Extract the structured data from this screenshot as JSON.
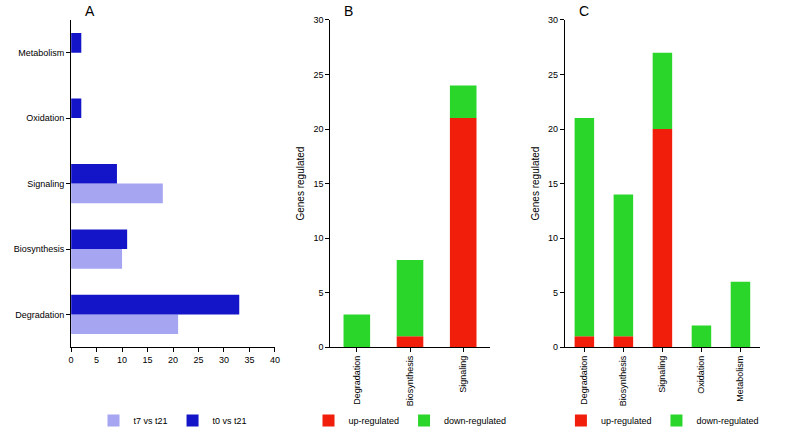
{
  "chart_data": [
    {
      "type": "bar",
      "title": "A",
      "orientation": "horizontal",
      "categories": [
        "Degradation",
        "Biosynthesis",
        "Signaling",
        "Oxidation",
        "Metabolism"
      ],
      "series": [
        {
          "name": "t7 vs t21",
          "color": "#a5a5f2",
          "values": [
            21,
            10,
            18,
            0,
            0
          ]
        },
        {
          "name": "t0 vs t21",
          "color": "#1414c8",
          "values": [
            33,
            11,
            9,
            2,
            2
          ]
        }
      ],
      "xlim": [
        0,
        40
      ],
      "xticks": [
        0,
        5,
        10,
        15,
        20,
        25,
        30,
        35,
        40
      ],
      "legend": "bottom"
    },
    {
      "type": "bar",
      "title": "B",
      "stacked": true,
      "categories": [
        "Degradation",
        "Biosynthesis",
        "Signaling"
      ],
      "y_label": "Genes regulated",
      "series": [
        {
          "name": "up-regulated",
          "color": "#f01e0a",
          "values": [
            0,
            1,
            21
          ]
        },
        {
          "name": "down-regulated",
          "color": "#2ad62a",
          "values": [
            3,
            7,
            3
          ]
        }
      ],
      "ylim": [
        0,
        30
      ],
      "yticks": [
        0,
        5,
        10,
        15,
        20,
        25,
        30
      ],
      "legend": "bottom"
    },
    {
      "type": "bar",
      "title": "C",
      "stacked": true,
      "categories": [
        "Degradation",
        "Biosynthesis",
        "Signaling",
        "Oxidation",
        "Metabolism"
      ],
      "y_label": "Genes regulated",
      "series": [
        {
          "name": "up-regulated",
          "color": "#f01e0a",
          "values": [
            1,
            1,
            20,
            0,
            0
          ]
        },
        {
          "name": "down-regulated",
          "color": "#2ad62a",
          "values": [
            20,
            13,
            7,
            2,
            6
          ]
        }
      ],
      "ylim": [
        0,
        30
      ],
      "yticks": [
        0,
        5,
        10,
        15,
        20,
        25,
        30
      ],
      "legend": "bottom"
    }
  ]
}
